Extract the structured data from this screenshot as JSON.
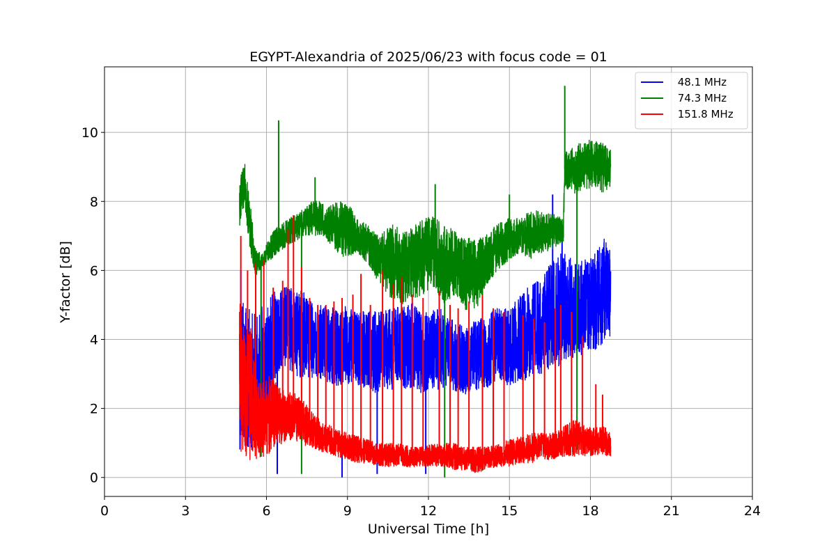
{
  "chart_data": {
    "type": "line",
    "title": "EGYPT-Alexandria of 2025/06/23 with focus code = 01",
    "xlabel": "Universal Time [h]",
    "ylabel": "Y-factor [dB]",
    "xlim": [
      0,
      24
    ],
    "ylim": [
      -0.55,
      11.9
    ],
    "xticks": [
      0,
      3,
      6,
      9,
      12,
      15,
      18,
      21,
      24
    ],
    "xtick_labels": [
      "0",
      "3",
      "6",
      "9",
      "12",
      "15",
      "18",
      "21",
      "24"
    ],
    "yticks": [
      0,
      2,
      4,
      6,
      8,
      10
    ],
    "ytick_labels": [
      "0",
      "2",
      "4",
      "6",
      "8",
      "10"
    ],
    "grid": true,
    "legend_position": "top-right",
    "series": [
      {
        "name": " 48.1 MHz",
        "color": "#0000ff",
        "x": [
          5.0,
          5.2,
          5.5,
          5.8,
          6.0,
          6.3,
          6.6,
          7.0,
          7.4,
          7.8,
          8.2,
          8.6,
          9.0,
          9.4,
          9.8,
          10.2,
          10.6,
          11.0,
          11.4,
          11.8,
          12.2,
          12.6,
          13.0,
          13.4,
          13.8,
          14.2,
          14.6,
          15.0,
          15.4,
          15.8,
          16.2,
          16.6,
          17.0,
          17.4,
          17.8,
          18.2,
          18.5,
          18.75
        ],
        "y_low": [
          0.8,
          0.7,
          0.8,
          0.9,
          1.0,
          2.8,
          3.2,
          3.0,
          2.8,
          2.9,
          2.7,
          2.6,
          2.7,
          2.6,
          2.5,
          2.4,
          2.5,
          2.6,
          2.5,
          2.4,
          2.5,
          2.6,
          2.5,
          2.4,
          2.5,
          2.6,
          2.7,
          2.6,
          2.7,
          2.9,
          3.0,
          3.1,
          3.3,
          3.4,
          3.6,
          3.7,
          3.9,
          4.1
        ],
        "y_high": [
          5.5,
          5.0,
          4.8,
          5.0,
          5.2,
          5.4,
          5.6,
          5.5,
          5.4,
          5.0,
          5.0,
          4.9,
          5.0,
          4.8,
          4.9,
          4.8,
          4.9,
          5.0,
          5.1,
          4.8,
          4.9,
          4.9,
          4.5,
          4.4,
          4.6,
          4.7,
          5.0,
          4.9,
          5.3,
          5.6,
          5.8,
          6.4,
          6.6,
          6.3,
          6.4,
          6.5,
          7.0,
          6.7
        ],
        "spikes": [
          [
            5.05,
            6.0
          ],
          [
            6.4,
            0.1
          ],
          [
            8.8,
            0.0
          ],
          [
            10.1,
            0.1
          ],
          [
            11.9,
            0.1
          ],
          [
            16.6,
            8.2
          ],
          [
            16.95,
            7.1
          ]
        ]
      },
      {
        "name": " 74.3 MHz",
        "color": "#008000",
        "x": [
          5.0,
          5.2,
          5.4,
          5.6,
          5.8,
          6.0,
          6.3,
          6.6,
          7.0,
          7.4,
          7.8,
          8.2,
          8.6,
          9.0,
          9.4,
          9.8,
          10.2,
          10.6,
          11.0,
          11.4,
          11.8,
          12.2,
          12.6,
          13.0,
          13.4,
          13.8,
          14.2,
          14.6,
          15.0,
          15.4,
          15.8,
          16.2,
          16.6,
          17.0,
          17.05,
          17.4,
          17.8,
          18.2,
          18.5,
          18.75
        ],
        "y_low": [
          7.2,
          7.8,
          6.5,
          5.8,
          6.0,
          6.2,
          6.4,
          6.6,
          6.8,
          7.0,
          7.0,
          6.9,
          6.5,
          6.3,
          6.5,
          6.1,
          5.6,
          5.2,
          5.0,
          5.1,
          5.3,
          5.5,
          5.0,
          5.3,
          4.8,
          4.9,
          5.6,
          6.0,
          6.3,
          6.5,
          6.3,
          6.5,
          6.6,
          6.8,
          8.4,
          8.2,
          8.3,
          8.4,
          8.2,
          8.4
        ],
        "y_high": [
          8.6,
          9.2,
          8.0,
          6.6,
          6.5,
          6.8,
          7.2,
          7.4,
          7.6,
          7.8,
          8.1,
          7.9,
          8.0,
          8.0,
          7.5,
          7.3,
          7.0,
          7.4,
          7.2,
          7.3,
          7.5,
          7.6,
          7.3,
          7.2,
          7.0,
          6.9,
          7.1,
          7.4,
          7.6,
          7.5,
          7.8,
          7.7,
          7.7,
          7.5,
          9.5,
          9.6,
          9.8,
          9.8,
          9.7,
          9.5
        ],
        "spikes": [
          [
            6.45,
            10.35
          ],
          [
            7.8,
            8.7
          ],
          [
            12.25,
            8.5
          ],
          [
            15.0,
            8.2
          ],
          [
            17.05,
            11.35
          ],
          [
            5.8,
            0.6
          ],
          [
            7.3,
            0.1
          ],
          [
            12.6,
            0.0
          ],
          [
            14.0,
            0.2
          ],
          [
            17.5,
            0.8
          ]
        ]
      },
      {
        "name": " 151.8 MHz",
        "color": "#ff0000",
        "x": [
          5.0,
          5.2,
          5.4,
          5.6,
          5.8,
          6.0,
          6.3,
          6.6,
          7.0,
          7.4,
          7.8,
          8.2,
          8.6,
          9.0,
          9.4,
          9.8,
          10.2,
          10.6,
          11.0,
          11.4,
          11.8,
          12.2,
          12.6,
          13.0,
          13.4,
          13.8,
          14.2,
          14.6,
          15.0,
          15.4,
          15.8,
          16.2,
          16.6,
          17.0,
          17.4,
          17.8,
          18.2,
          18.5,
          18.75
        ],
        "y_low": [
          0.7,
          0.6,
          0.5,
          0.4,
          0.5,
          0.6,
          0.8,
          1.0,
          1.1,
          0.9,
          0.8,
          0.7,
          0.6,
          0.5,
          0.4,
          0.4,
          0.3,
          0.3,
          0.3,
          0.3,
          0.3,
          0.3,
          0.3,
          0.2,
          0.2,
          0.1,
          0.2,
          0.3,
          0.3,
          0.4,
          0.4,
          0.5,
          0.5,
          0.6,
          0.6,
          0.6,
          0.6,
          0.6,
          0.6
        ],
        "y_high": [
          5.2,
          4.5,
          4.6,
          3.0,
          2.8,
          3.0,
          2.8,
          2.6,
          2.5,
          2.2,
          1.8,
          1.6,
          1.4,
          1.3,
          1.2,
          1.1,
          1.0,
          1.0,
          1.0,
          0.9,
          0.9,
          1.0,
          1.0,
          1.0,
          0.9,
          0.9,
          0.9,
          1.0,
          1.1,
          1.2,
          1.3,
          1.3,
          1.3,
          1.5,
          1.7,
          1.5,
          1.5,
          1.5,
          1.3
        ],
        "spikes": [
          [
            5.05,
            7.0
          ],
          [
            5.3,
            6.0
          ],
          [
            5.6,
            6.2
          ],
          [
            5.9,
            6.3
          ],
          [
            6.25,
            5.5
          ],
          [
            6.6,
            5.7
          ],
          [
            6.8,
            7.2
          ],
          [
            7.0,
            7.6
          ],
          [
            7.3,
            6.1
          ],
          [
            7.6,
            5.2
          ],
          [
            7.9,
            5.0
          ],
          [
            8.2,
            5.0
          ],
          [
            8.5,
            5.1
          ],
          [
            8.8,
            5.2
          ],
          [
            9.2,
            5.3
          ],
          [
            9.5,
            5.9
          ],
          [
            9.85,
            5.0
          ],
          [
            10.3,
            6.0
          ],
          [
            10.7,
            5.6
          ],
          [
            11.0,
            5.8
          ],
          [
            11.4,
            5.3
          ],
          [
            11.8,
            5.2
          ],
          [
            12.4,
            5.4
          ],
          [
            12.8,
            5.0
          ],
          [
            13.1,
            4.9
          ],
          [
            13.5,
            5.1
          ],
          [
            14.0,
            5.3
          ],
          [
            14.4,
            4.9
          ],
          [
            14.8,
            4.8
          ],
          [
            15.5,
            4.7
          ],
          [
            15.9,
            4.6
          ],
          [
            16.3,
            4.5
          ],
          [
            16.7,
            4.9
          ],
          [
            16.9,
            5.0
          ],
          [
            17.3,
            4.8
          ],
          [
            17.7,
            4.1
          ],
          [
            18.2,
            2.7
          ],
          [
            18.45,
            2.4
          ]
        ]
      }
    ]
  }
}
